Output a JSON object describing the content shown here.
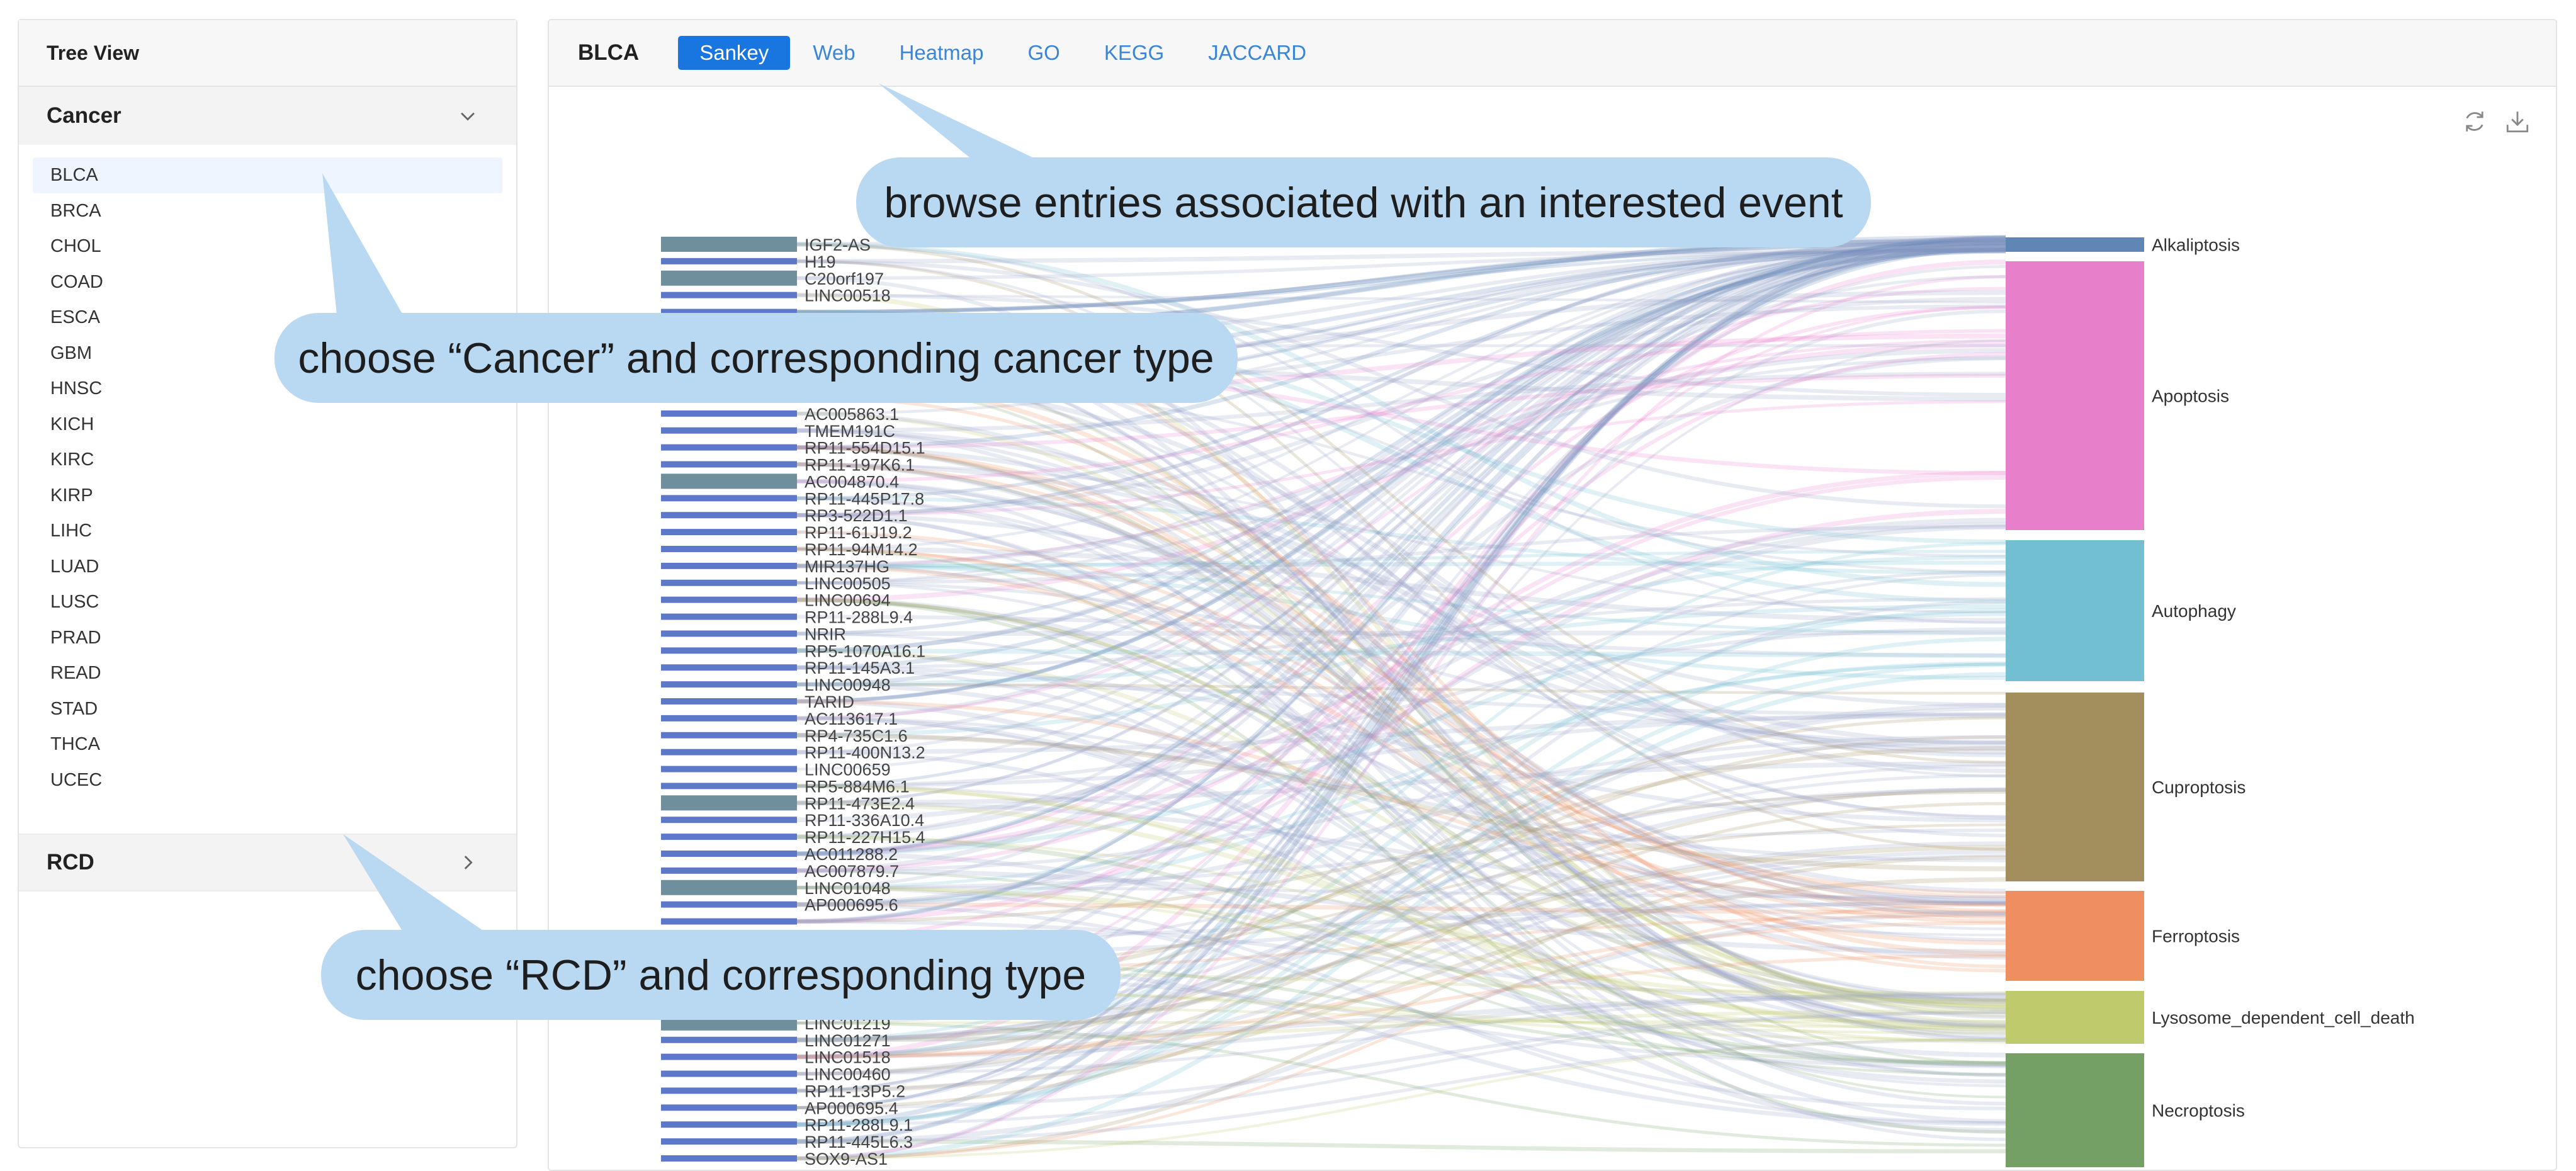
{
  "tree": {
    "title": "Tree View",
    "cancer_group": "Cancer",
    "cancer_types": [
      "BLCA",
      "BRCA",
      "CHOL",
      "COAD",
      "ESCA",
      "GBM",
      "HNSC",
      "KICH",
      "KIRC",
      "KIRP",
      "LIHC",
      "LUAD",
      "LUSC",
      "PRAD",
      "READ",
      "STAD",
      "THCA",
      "UCEC"
    ],
    "selected": "BLCA",
    "rcd_group": "RCD"
  },
  "main": {
    "title": "BLCA",
    "tabs": [
      "Sankey",
      "Web",
      "Heatmap",
      "GO",
      "KEGG",
      "JACCARD"
    ],
    "active_tab": "Sankey",
    "icons": [
      "refresh-icon",
      "download-icon"
    ]
  },
  "sankey": {
    "left_nodes": [
      "IGF2-AS",
      "H19",
      "C20orf197",
      "LINC00518",
      "",
      "",
      "",
      "",
      "",
      "",
      "AC005863.1",
      "TMEM191C",
      "RP11-554D15.1",
      "RP11-197K6.1",
      "AC004870.4",
      "RP11-445P17.8",
      "RP3-522D1.1",
      "RP11-61J19.2",
      "RP11-94M14.2",
      "MIR137HG",
      "LINC00505",
      "LINC00694",
      "RP11-288L9.4",
      "NRIR",
      "RP5-1070A16.1",
      "RP11-145A3.1",
      "LINC00948",
      "TARID",
      "AC113617.1",
      "RP4-735C1.6",
      "RP11-400N13.2",
      "LINC00659",
      "RP5-884M6.1",
      "RP11-473E2.4",
      "RP11-336A10.4",
      "RP11-227H15.4",
      "AC011288.2",
      "AC007879.7",
      "LINC01048",
      "AP000695.6",
      "",
      "",
      "",
      "",
      "",
      "",
      "LINC01219",
      "LINC01271",
      "LINC01518",
      "LINC00460",
      "RP11-13P5.2",
      "AP000695.4",
      "RP11-288L9.1",
      "RP11-445L6.3",
      "SOX9-AS1"
    ],
    "right_nodes": [
      {
        "name": "Alkaliptosis",
        "color": "#5f86b4"
      },
      {
        "name": "Apoptosis",
        "color": "#e77fcb"
      },
      {
        "name": "Autophagy",
        "color": "#72bfd1"
      },
      {
        "name": "Cuproptosis",
        "color": "#a38f5d"
      },
      {
        "name": "Ferroptosis",
        "color": "#ef8e61"
      },
      {
        "name": "Lysosome_dependent_cell_death",
        "color": "#bfca6d"
      },
      {
        "name": "Necroptosis",
        "color": "#74a066"
      }
    ],
    "colors": {
      "left_bar": "#5d78c8",
      "left_bar_alt": "#6e8f9b",
      "link_default": "#9aa6c7"
    }
  },
  "callouts": {
    "top": "browse entries associated with an interested event",
    "cancer": "choose “Cancer” and corresponding cancer type",
    "rcd": "choose “RCD” and corresponding type"
  }
}
